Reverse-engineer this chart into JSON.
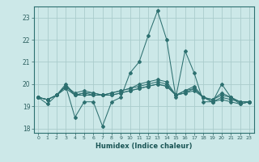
{
  "xlabel": "Humidex (Indice chaleur)",
  "xlim": [
    -0.5,
    23.5
  ],
  "ylim": [
    17.8,
    23.5
  ],
  "yticks": [
    18,
    19,
    20,
    21,
    22,
    23
  ],
  "xticks": [
    0,
    1,
    2,
    3,
    4,
    5,
    6,
    7,
    8,
    9,
    10,
    11,
    12,
    13,
    14,
    15,
    16,
    17,
    18,
    19,
    20,
    21,
    22,
    23
  ],
  "bg_color": "#cce8e8",
  "line_color": "#2d7070",
  "grid_color": "#aacccc",
  "series": [
    [
      19.4,
      19.1,
      19.5,
      19.9,
      18.5,
      19.2,
      19.2,
      18.1,
      19.2,
      19.4,
      20.5,
      21.0,
      22.2,
      23.3,
      22.0,
      19.4,
      21.5,
      20.5,
      19.2,
      19.2,
      20.0,
      19.4,
      19.1,
      19.2
    ],
    [
      19.4,
      19.3,
      19.5,
      19.9,
      19.5,
      19.5,
      19.5,
      19.5,
      19.5,
      19.6,
      19.7,
      19.8,
      19.9,
      20.0,
      19.9,
      19.5,
      19.7,
      19.8,
      19.4,
      19.2,
      19.3,
      19.2,
      19.1,
      19.2
    ],
    [
      19.4,
      19.3,
      19.5,
      19.8,
      19.5,
      19.6,
      19.5,
      19.5,
      19.5,
      19.6,
      19.7,
      19.8,
      19.9,
      20.0,
      19.9,
      19.5,
      19.6,
      19.7,
      19.4,
      19.2,
      19.4,
      19.3,
      19.2,
      19.2
    ],
    [
      19.4,
      19.3,
      19.5,
      20.0,
      19.5,
      19.6,
      19.6,
      19.5,
      19.6,
      19.7,
      19.8,
      19.9,
      20.0,
      20.1,
      20.0,
      19.5,
      19.6,
      19.8,
      19.4,
      19.3,
      19.5,
      19.4,
      19.2,
      19.2
    ],
    [
      19.4,
      19.3,
      19.5,
      19.9,
      19.6,
      19.7,
      19.6,
      19.5,
      19.6,
      19.7,
      19.8,
      20.0,
      20.1,
      20.2,
      20.1,
      19.5,
      19.7,
      19.9,
      19.4,
      19.3,
      19.6,
      19.4,
      19.2,
      19.2
    ]
  ],
  "figsize": [
    3.2,
    2.0
  ],
  "dpi": 100
}
